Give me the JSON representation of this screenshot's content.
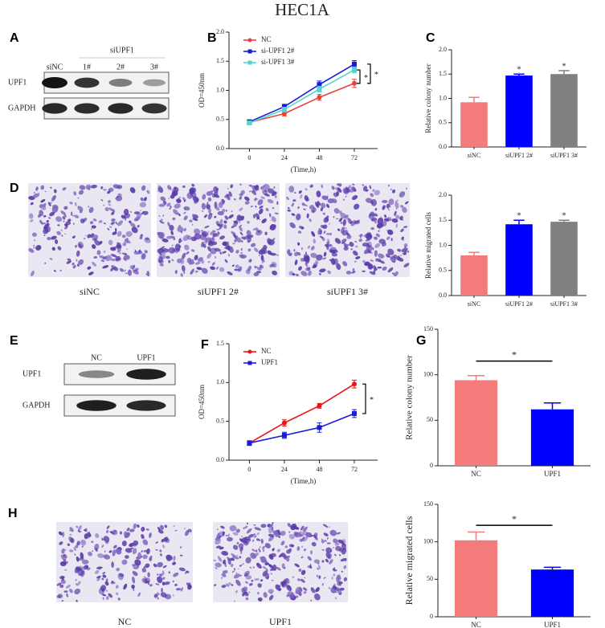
{
  "header": {
    "title": "HEC1A"
  },
  "blots": [
    {
      "panel": "A",
      "group": "siUPF1",
      "lanes": [
        "siNC",
        "1#",
        "2#",
        "3#"
      ],
      "rows": [
        "UPF1",
        "GAPDH"
      ]
    },
    {
      "panel": "E",
      "lanes": [
        "NC",
        "UPF1"
      ],
      "rows": [
        "UPF1",
        "GAPDH"
      ]
    }
  ],
  "micrographs": [
    {
      "panel": "D",
      "captions": [
        "siNC",
        "siUPF1 2#",
        "siUPF1 3#"
      ]
    },
    {
      "panel": "H",
      "captions": [
        "NC",
        "UPF1"
      ]
    }
  ],
  "chart_data": [
    {
      "type": "line",
      "panel": "B",
      "x_label": "(Time,h)",
      "y_label": "OD=450nm",
      "x": [
        0,
        24,
        48,
        72
      ],
      "xlim": [
        -14,
        88
      ],
      "xticks": [
        0,
        24,
        48,
        72
      ],
      "ylim": [
        0,
        2
      ],
      "yticks": [
        {
          "value": 0,
          "label": "0.0"
        },
        0.5,
        {
          "value": 1,
          "label": "1.0"
        },
        1.5,
        {
          "value": 2,
          "label": "2.0"
        }
      ],
      "series": [
        {
          "name": "NC",
          "color": "#e8413c",
          "values": [
            0.45,
            0.6,
            0.88,
            1.12
          ],
          "errors": [
            0.03,
            0.04,
            0.05,
            0.07
          ]
        },
        {
          "name": "si-UPF1 2#",
          "color": "#1a1adb",
          "values": [
            0.46,
            0.72,
            1.1,
            1.45
          ],
          "errors": [
            0.03,
            0.04,
            0.06,
            0.06
          ]
        },
        {
          "name": "si-UPF1 3#",
          "color": "#4fd6d6",
          "values": [
            0.44,
            0.67,
            1.02,
            1.35
          ],
          "errors": [
            0.03,
            0.04,
            0.05,
            0.05
          ]
        }
      ],
      "annotations": [
        "*",
        "*"
      ]
    },
    {
      "type": "bar",
      "panel": "C",
      "y_label": "Relative colony number",
      "categories": [
        "siNC",
        "siUPF1 2#",
        "siUPF1 3#"
      ],
      "values": [
        0.92,
        1.47,
        1.5
      ],
      "errors": [
        0.1,
        0.03,
        0.07
      ],
      "colors": [
        "#f47b7b",
        "#0000ff",
        "#808080"
      ],
      "ylim": [
        0,
        2
      ],
      "yticks": [
        {
          "value": 0,
          "label": "0.0"
        },
        0.5,
        {
          "value": 1,
          "label": "1.0"
        },
        1.5,
        {
          "value": 2,
          "label": "2.0"
        }
      ],
      "annotations": [
        "*",
        "*"
      ]
    },
    {
      "type": "bar",
      "y_label": "Relative migrated cells",
      "categories": [
        "siNC",
        "siUPF1 2#",
        "siUPF1 3#"
      ],
      "values": [
        0.8,
        1.42,
        1.47
      ],
      "errors": [
        0.06,
        0.08,
        0.03
      ],
      "colors": [
        "#f47b7b",
        "#0000ff",
        "#808080"
      ],
      "ylim": [
        0,
        2
      ],
      "yticks": [
        {
          "value": 0,
          "label": "0.0"
        },
        0.5,
        {
          "value": 1,
          "label": "1.0"
        },
        1.5,
        {
          "value": 2,
          "label": "2.0"
        }
      ],
      "annotations": [
        "*",
        "*"
      ]
    },
    {
      "type": "line",
      "panel": "F",
      "x_label": "(Time,h)",
      "y_label": "OD=450nm",
      "x": [
        0,
        24,
        48,
        72
      ],
      "xlim": [
        -14,
        88
      ],
      "xticks": [
        0,
        24,
        48,
        72
      ],
      "ylim": [
        0,
        1.5
      ],
      "yticks": [
        {
          "value": 0,
          "label": "0.0"
        },
        0.5,
        {
          "value": 1,
          "label": "1.0"
        },
        1.5
      ],
      "series": [
        {
          "name": "NC",
          "color": "#e8131b",
          "values": [
            0.22,
            0.48,
            0.7,
            0.98
          ],
          "errors": [
            0.03,
            0.04,
            0.03,
            0.05
          ]
        },
        {
          "name": "UPF1",
          "color": "#1a1adb",
          "values": [
            0.22,
            0.32,
            0.42,
            0.6
          ],
          "errors": [
            0.03,
            0.04,
            0.06,
            0.05
          ]
        }
      ],
      "annotations": [
        "*"
      ]
    },
    {
      "type": "bar",
      "panel": "G",
      "y_label": "Relative colony number",
      "categories": [
        "NC",
        "UPF1"
      ],
      "values": [
        94,
        62
      ],
      "errors": [
        5,
        7
      ],
      "colors": [
        "#f47b7b",
        "#0000ff"
      ],
      "ylim": [
        0,
        150
      ],
      "yticks": [
        0,
        50,
        100,
        150
      ],
      "annotations": [
        "*"
      ]
    },
    {
      "type": "bar",
      "y_label": "Relative migrated cells",
      "categories": [
        "NC",
        "UPF1"
      ],
      "values": [
        102,
        63
      ],
      "errors": [
        11,
        3
      ],
      "colors": [
        "#f47b7b",
        "#0000ff"
      ],
      "ylim": [
        0,
        150
      ],
      "yticks": [
        0,
        50,
        100,
        150
      ],
      "annotations": [
        "*"
      ]
    }
  ]
}
